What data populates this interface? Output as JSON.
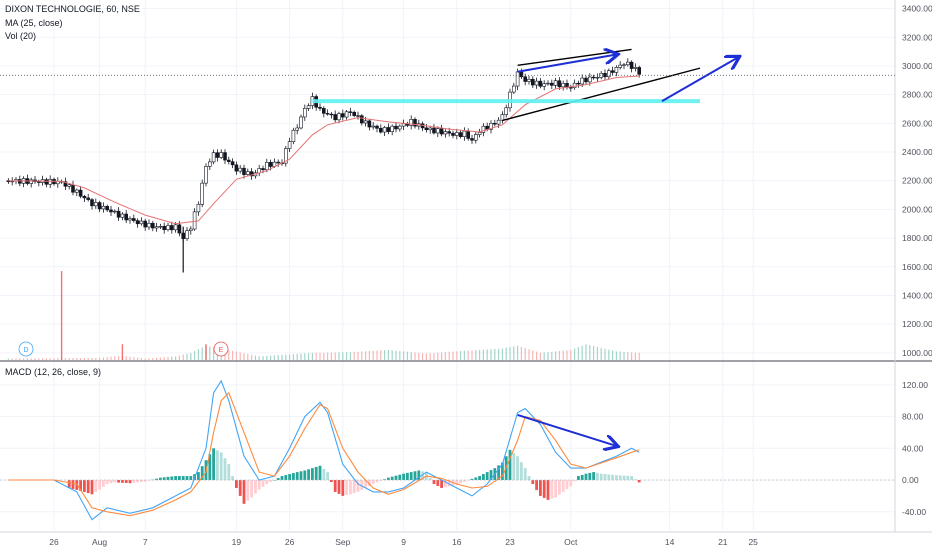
{
  "legend": {
    "symbol": "DIXON TECHNOLOGIE, 60, NSE",
    "ma": "MA (25, close)",
    "vol": "Vol (20)",
    "macd": "MACD (12, 26, close, 9)"
  },
  "markers": {
    "dividend": "D",
    "earnings": "E"
  },
  "colors": {
    "up": "#26a69a",
    "down": "#ef5350",
    "ma": "#e57373",
    "macd_line": "#42a5f5",
    "signal_line": "#ff8a3d",
    "hist_up_strong": "#26a69a",
    "hist_up_weak": "#b2dfdb",
    "hist_down_strong": "#ef5350",
    "hist_down_weak": "#ffcdd2",
    "annotation_blue": "#1f2fd6",
    "support_cyan": "#5ff0ef",
    "trend_black": "#000000"
  },
  "chart_data": [
    {
      "type": "candlestick",
      "title": "DIXON TECHNOLOGIE, 60, NSE",
      "y_ticks": [
        "3400.00",
        "3200.00",
        "3000.00",
        "2800.00",
        "2600.00",
        "2400.00",
        "2200.00",
        "2000.00",
        "1800.00",
        "1600.00",
        "1400.00",
        "1200.00",
        "1000.00"
      ],
      "ylim": [
        950,
        3460
      ],
      "x_ticks": [
        {
          "label": "26",
          "d": -4
        },
        {
          "label": "Aug",
          "d": 2
        },
        {
          "label": "7",
          "d": 8
        },
        {
          "label": "19",
          "d": 20
        },
        {
          "label": "26",
          "d": 27
        },
        {
          "label": "Sep",
          "d": 34
        },
        {
          "label": "9",
          "d": 42
        },
        {
          "label": "16",
          "d": 49
        },
        {
          "label": "23",
          "d": 56
        },
        {
          "label": "Oct",
          "d": 64
        },
        {
          "label": "14",
          "d": 77
        },
        {
          "label": "21",
          "d": 84
        },
        {
          "label": "25",
          "d": 88
        }
      ],
      "price_path": [
        [
          -10,
          2200
        ],
        [
          -3,
          2190
        ],
        [
          -1,
          2120
        ],
        [
          1,
          2040
        ],
        [
          3,
          2000
        ],
        [
          5,
          1950
        ],
        [
          7,
          1910
        ],
        [
          9,
          1880
        ],
        [
          11,
          1870
        ],
        [
          12,
          1880
        ],
        [
          13,
          1800
        ],
        [
          14,
          1880
        ],
        [
          15,
          2050
        ],
        [
          16,
          2300
        ],
        [
          17,
          2380
        ],
        [
          18,
          2380
        ],
        [
          19,
          2330
        ],
        [
          20,
          2280
        ],
        [
          22,
          2240
        ],
        [
          24,
          2310
        ],
        [
          26,
          2330
        ],
        [
          27,
          2490
        ],
        [
          28,
          2580
        ],
        [
          29,
          2700
        ],
        [
          30,
          2770
        ],
        [
          31,
          2690
        ],
        [
          33,
          2640
        ],
        [
          35,
          2680
        ],
        [
          37,
          2600
        ],
        [
          39,
          2550
        ],
        [
          41,
          2570
        ],
        [
          43,
          2610
        ],
        [
          45,
          2560
        ],
        [
          47,
          2540
        ],
        [
          49,
          2520
        ],
        [
          50,
          2530
        ],
        [
          51,
          2480
        ],
        [
          52,
          2550
        ],
        [
          54,
          2600
        ],
        [
          55,
          2650
        ],
        [
          56,
          2800
        ],
        [
          57,
          2950
        ],
        [
          58,
          2900
        ],
        [
          60,
          2870
        ],
        [
          62,
          2880
        ],
        [
          64,
          2850
        ],
        [
          65,
          2890
        ],
        [
          67,
          2920
        ],
        [
          69,
          2950
        ],
        [
          71,
          3020
        ],
        [
          72,
          3000
        ],
        [
          73,
          2950
        ]
      ],
      "moving_average_25": [
        [
          -10,
          2200
        ],
        [
          -3,
          2195
        ],
        [
          0,
          2150
        ],
        [
          4,
          2050
        ],
        [
          8,
          1960
        ],
        [
          12,
          1900
        ],
        [
          15,
          1920
        ],
        [
          17,
          2040
        ],
        [
          20,
          2210
        ],
        [
          24,
          2270
        ],
        [
          27,
          2350
        ],
        [
          30,
          2520
        ],
        [
          32,
          2590
        ],
        [
          36,
          2640
        ],
        [
          40,
          2610
        ],
        [
          44,
          2590
        ],
        [
          48,
          2560
        ],
        [
          52,
          2540
        ],
        [
          55,
          2590
        ],
        [
          58,
          2730
        ],
        [
          62,
          2840
        ],
        [
          66,
          2870
        ],
        [
          70,
          2920
        ],
        [
          73,
          2930
        ]
      ],
      "volume_path": [
        [
          -10,
          960
        ],
        [
          2,
          965
        ],
        [
          5,
          980
        ],
        [
          8,
          960
        ],
        [
          12,
          975
        ],
        [
          14,
          1000
        ],
        [
          16,
          1050
        ],
        [
          19,
          1020
        ],
        [
          23,
          975
        ],
        [
          30,
          1000
        ],
        [
          35,
          1005
        ],
        [
          40,
          1020
        ],
        [
          45,
          995
        ],
        [
          50,
          1015
        ],
        [
          55,
          1030
        ],
        [
          57,
          1050
        ],
        [
          60,
          1000
        ],
        [
          64,
          1020
        ],
        [
          66,
          1060
        ],
        [
          70,
          1010
        ],
        [
          73,
          1000
        ]
      ],
      "volume_spikes": [
        [
          -3,
          1570
        ],
        [
          5,
          1060
        ],
        [
          16,
          1060
        ]
      ],
      "annotations": [
        {
          "kind": "resistance",
          "x1": 57,
          "y1": 3005,
          "x2": 72,
          "y2": 3115,
          "color": "#000000"
        },
        {
          "kind": "support",
          "x1": 55,
          "y1": 2620,
          "x2": 81,
          "y2": 2985,
          "color": "#000000"
        },
        {
          "kind": "horizontal",
          "x1": 30,
          "x2": 81,
          "y": 2755,
          "color": "#5ff0ef"
        },
        {
          "kind": "arrow",
          "x1": 57,
          "y1": 2960,
          "x2": 70,
          "y2": 3080,
          "color": "#1f2fd6"
        },
        {
          "kind": "arrow",
          "x1": 76,
          "y1": 2755,
          "x2": 86,
          "y2": 3060,
          "color": "#1f2fd6"
        },
        {
          "kind": "last-price-line",
          "y": 2935
        }
      ]
    },
    {
      "type": "line",
      "title": "MACD (12, 26, close, 9)",
      "y_ticks": [
        "120.00",
        "80.00",
        "40.00",
        "0.00",
        "-40.00"
      ],
      "ylim": [
        -63,
        145
      ],
      "series": [
        {
          "name": "MACD",
          "points": [
            [
              -10,
              0
            ],
            [
              -4,
              0
            ],
            [
              -1,
              -15
            ],
            [
              1,
              -50
            ],
            [
              3,
              -35
            ],
            [
              6,
              -42
            ],
            [
              9,
              -35
            ],
            [
              12,
              -20
            ],
            [
              14,
              -10
            ],
            [
              16,
              40
            ],
            [
              17,
              110
            ],
            [
              18,
              125
            ],
            [
              19,
              100
            ],
            [
              21,
              30
            ],
            [
              23,
              0
            ],
            [
              25,
              5
            ],
            [
              27,
              40
            ],
            [
              29,
              80
            ],
            [
              31,
              98
            ],
            [
              32,
              85
            ],
            [
              34,
              20
            ],
            [
              36,
              -5
            ],
            [
              38,
              -15
            ],
            [
              40,
              -15
            ],
            [
              42,
              -10
            ],
            [
              45,
              10
            ],
            [
              47,
              0
            ],
            [
              49,
              -10
            ],
            [
              51,
              -20
            ],
            [
              53,
              -5
            ],
            [
              55,
              20
            ],
            [
              57,
              85
            ],
            [
              58,
              90
            ],
            [
              60,
              70
            ],
            [
              62,
              35
            ],
            [
              64,
              15
            ],
            [
              66,
              15
            ],
            [
              70,
              30
            ],
            [
              72,
              40
            ],
            [
              73,
              35
            ]
          ]
        },
        {
          "name": "Signal",
          "points": [
            [
              -10,
              0
            ],
            [
              -4,
              0
            ],
            [
              -1,
              -5
            ],
            [
              1,
              -35
            ],
            [
              3,
              -40
            ],
            [
              6,
              -45
            ],
            [
              9,
              -38
            ],
            [
              12,
              -25
            ],
            [
              14,
              -15
            ],
            [
              16,
              10
            ],
            [
              17,
              60
            ],
            [
              18,
              100
            ],
            [
              19,
              110
            ],
            [
              21,
              60
            ],
            [
              23,
              10
            ],
            [
              25,
              5
            ],
            [
              27,
              30
            ],
            [
              29,
              65
            ],
            [
              31,
              95
            ],
            [
              32,
              90
            ],
            [
              34,
              40
            ],
            [
              36,
              10
            ],
            [
              38,
              -10
            ],
            [
              40,
              -18
            ],
            [
              42,
              -12
            ],
            [
              45,
              5
            ],
            [
              47,
              2
            ],
            [
              49,
              -5
            ],
            [
              51,
              -10
            ],
            [
              53,
              -8
            ],
            [
              55,
              5
            ],
            [
              57,
              50
            ],
            [
              58,
              80
            ],
            [
              60,
              75
            ],
            [
              62,
              50
            ],
            [
              64,
              20
            ],
            [
              66,
              15
            ],
            [
              70,
              28
            ],
            [
              72,
              35
            ],
            [
              73,
              38
            ]
          ]
        }
      ],
      "histogram": [
        [
          -2,
          -10
        ],
        [
          0,
          -15
        ],
        [
          1,
          -18
        ],
        [
          2,
          -12
        ],
        [
          3,
          -5
        ],
        [
          4,
          -3
        ],
        [
          6,
          -4
        ],
        [
          8,
          -2
        ],
        [
          10,
          3
        ],
        [
          12,
          5
        ],
        [
          14,
          5
        ],
        [
          15,
          10
        ],
        [
          16,
          25
        ],
        [
          17,
          40
        ],
        [
          18,
          35
        ],
        [
          19,
          20
        ],
        [
          20,
          -10
        ],
        [
          21,
          -30
        ],
        [
          22,
          -22
        ],
        [
          23,
          -12
        ],
        [
          24,
          -5
        ],
        [
          26,
          5
        ],
        [
          28,
          10
        ],
        [
          29,
          12
        ],
        [
          30,
          15
        ],
        [
          31,
          18
        ],
        [
          32,
          10
        ],
        [
          33,
          -15
        ],
        [
          34,
          -20
        ],
        [
          35,
          -18
        ],
        [
          36,
          -15
        ],
        [
          37,
          -10
        ],
        [
          38,
          -5
        ],
        [
          40,
          3
        ],
        [
          42,
          8
        ],
        [
          44,
          12
        ],
        [
          45,
          10
        ],
        [
          46,
          -5
        ],
        [
          47,
          -10
        ],
        [
          48,
          -8
        ],
        [
          49,
          -6
        ],
        [
          50,
          -2
        ],
        [
          52,
          5
        ],
        [
          54,
          15
        ],
        [
          55,
          22
        ],
        [
          56,
          38
        ],
        [
          57,
          30
        ],
        [
          58,
          15
        ],
        [
          59,
          -5
        ],
        [
          60,
          -20
        ],
        [
          61,
          -25
        ],
        [
          62,
          -22
        ],
        [
          63,
          -15
        ],
        [
          64,
          -8
        ],
        [
          65,
          5
        ],
        [
          66,
          8
        ],
        [
          67,
          10
        ],
        [
          68,
          8
        ],
        [
          70,
          6
        ],
        [
          72,
          5
        ],
        [
          73,
          -3
        ]
      ]
    }
  ]
}
